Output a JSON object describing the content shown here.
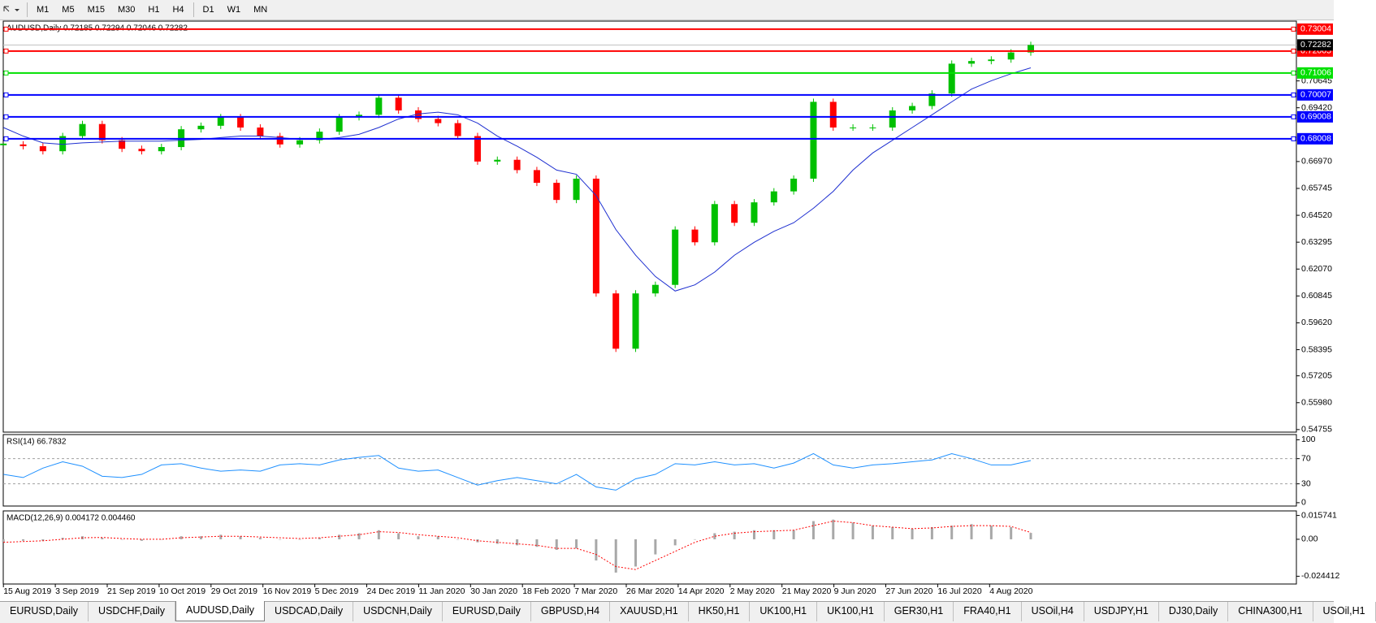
{
  "toolbar": {
    "timeframes": [
      "M1",
      "M5",
      "M15",
      "M30",
      "H1",
      "H4",
      "D1",
      "W1",
      "MN"
    ]
  },
  "chart_data": [
    {
      "type": "candlestick",
      "title": "AUDUSD,Daily  0.72185 0.72294 0.72046 0.72282",
      "xticklabels": [
        "15 Aug 2019",
        "3 Sep 2019",
        "21 Sep 2019",
        "10 Oct 2019",
        "29 Oct 2019",
        "16 Nov 2019",
        "5 Dec 2019",
        "24 Dec 2019",
        "11 Jan 2020",
        "30 Jan 2020",
        "18 Feb 2020",
        "7 Mar 2020",
        "26 Mar 2020",
        "14 Apr 2020",
        "2 May 2020",
        "21 May 2020",
        "9 Jun 2020",
        "27 Jun 2020",
        "16 Jul 2020",
        "4 Aug 2020"
      ],
      "series": [
        {
          "color": "#00c000",
          "down_color": "#ff0000",
          "values": [
            0.6775,
            0.6767,
            0.6744,
            0.6813,
            0.6868,
            0.6794,
            0.6755,
            0.6744,
            0.6763,
            0.6844,
            0.686,
            0.6899,
            0.6852,
            0.6813,
            0.6775,
            0.6794,
            0.6833,
            0.6899,
            0.691,
            0.6988,
            0.693,
            0.6891,
            0.6872,
            0.6813,
            0.6697,
            0.6705,
            0.6658,
            0.66,
            0.6522,
            0.6619,
            0.6096,
            0.5844,
            0.6096,
            0.6135,
            0.6387,
            0.6329,
            0.6503,
            0.6418,
            0.6511,
            0.6561,
            0.6619,
            0.6969,
            0.6852,
            0.6852,
            0.6852,
            0.693,
            0.695,
            0.7007,
            0.7143,
            0.7155,
            0.7162,
            0.7194,
            0.7228
          ]
        },
        {
          "color": "#1e2fd0",
          "values": [
            0.6852,
            0.6813,
            0.6782,
            0.6775,
            0.6782,
            0.6786,
            0.679,
            0.679,
            0.679,
            0.6794,
            0.6798,
            0.6806,
            0.6813,
            0.6813,
            0.6806,
            0.6798,
            0.6798,
            0.6806,
            0.6821,
            0.6852,
            0.6891,
            0.6914,
            0.6922,
            0.691,
            0.6872,
            0.6813,
            0.6767,
            0.6716,
            0.6658,
            0.6639,
            0.6542,
            0.6387,
            0.627,
            0.6173,
            0.6107,
            0.6135,
            0.6193,
            0.627,
            0.6329,
            0.6379,
            0.6418,
            0.6484,
            0.6561,
            0.6658,
            0.6736,
            0.6794,
            0.6852,
            0.691,
            0.6969,
            0.7027,
            0.7065,
            0.7097,
            0.7124
          ]
        }
      ],
      "ylim": [
        0.54639,
        0.73369
      ],
      "yticks": [
        0.70645,
        {
          "value": 0.6942,
          "label": "0.69420"
        },
        {
          "value": 0.6697,
          "label": "0.66970"
        },
        0.65745,
        {
          "value": 0.6452,
          "label": "0.64520"
        },
        0.63295,
        {
          "value": 0.6207,
          "label": "0.62070"
        },
        0.60845,
        {
          "value": 0.5962,
          "label": "0.59620"
        },
        0.58395,
        0.57205,
        {
          "value": 0.5598,
          "label": "0.55980"
        },
        0.54755
      ],
      "current": 0.72282,
      "levels": [
        {
          "value": 0.73004,
          "color": "#ff0000"
        },
        {
          "value": 0.72005,
          "color": "#ff0000"
        },
        {
          "value": 0.71006,
          "color": "#00e000"
        },
        {
          "value": 0.70007,
          "color": "#0000ff"
        },
        {
          "value": 0.69008,
          "color": "#0000ff"
        },
        {
          "value": 0.68008,
          "color": "#0000ff"
        }
      ]
    },
    {
      "type": "line",
      "title": "RSI(14) 66.7832",
      "series": [
        {
          "color": "#1e90ff",
          "values": [
            45,
            40,
            55,
            65,
            58,
            42,
            40,
            45,
            60,
            62,
            55,
            50,
            52,
            50,
            60,
            62,
            60,
            68,
            72,
            75,
            55,
            50,
            52,
            40,
            28,
            35,
            40,
            35,
            30,
            45,
            25,
            20,
            38,
            45,
            62,
            60,
            65,
            60,
            62,
            55,
            63,
            78,
            60,
            55,
            60,
            62,
            65,
            68,
            78,
            70,
            60,
            60,
            67
          ]
        }
      ],
      "ylim": [
        -5.3,
        108.3
      ],
      "yticks": [
        100,
        70,
        30,
        0
      ],
      "levels": [
        {
          "value": 70
        },
        {
          "value": 30
        }
      ]
    },
    {
      "type": "bar",
      "title": "MACD(12,26,9) 0.004172 0.004460",
      "series": [
        {
          "style": "bar",
          "color": "#a8a8a8",
          "values": [
            -0.002,
            -0.001,
            -0.001,
            0.001,
            0.002,
            0.001,
            0,
            -0.001,
            0,
            0.002,
            0.002,
            0.003,
            0.002,
            0.001,
            0,
            0,
            0.001,
            0.003,
            0.004,
            0.006,
            0.004,
            0.002,
            0.002,
            0,
            -0.002,
            -0.003,
            -0.004,
            -0.005,
            -0.007,
            -0.006,
            -0.014,
            -0.022,
            -0.018,
            -0.01,
            -0.004,
            0,
            0.004,
            0.005,
            0.006,
            0.006,
            0.006,
            0.012,
            0.013,
            0.011,
            0.009,
            0.008,
            0.007,
            0.008,
            0.009,
            0.01,
            0.009,
            0.008,
            0.0042
          ]
        },
        {
          "style": "dashed",
          "color": "#ff0000",
          "values": [
            -0.002,
            -0.0015,
            -0.001,
            0,
            0.001,
            0.0012,
            0.0005,
            0,
            0,
            0.001,
            0.0015,
            0.002,
            0.002,
            0.0015,
            0.001,
            0.0005,
            0.001,
            0.002,
            0.003,
            0.005,
            0.0045,
            0.003,
            0.002,
            0.001,
            -0.001,
            -0.002,
            -0.003,
            -0.004,
            -0.006,
            -0.006,
            -0.01,
            -0.018,
            -0.02,
            -0.014,
            -0.008,
            -0.002,
            0.002,
            0.004,
            0.005,
            0.0055,
            0.006,
            0.009,
            0.012,
            0.011,
            0.009,
            0.008,
            0.007,
            0.0075,
            0.0085,
            0.009,
            0.009,
            0.0085,
            0.00446
          ]
        }
      ],
      "ylim": [
        -0.02955,
        0.01874
      ],
      "yticks": [
        0.015741,
        {
          "value": 0,
          "label": "0.00"
        },
        -0.024412
      ]
    }
  ],
  "tabs": {
    "items": [
      "EURUSD,Daily",
      "USDCHF,Daily",
      "AUDUSD,Daily",
      "USDCAD,Daily",
      "USDCNH,Daily",
      "EURUSD,Daily",
      "GBPUSD,H4",
      "XAUUSD,H1",
      "HK50,H1",
      "UK100,H1",
      "UK100,H1",
      "GER30,H1",
      "FRA40,H1",
      "USOil,H4",
      "USDJPY,H1",
      "DJ30,Daily",
      "CHINA300,H1",
      "USOil,H1"
    ],
    "active": 2
  }
}
